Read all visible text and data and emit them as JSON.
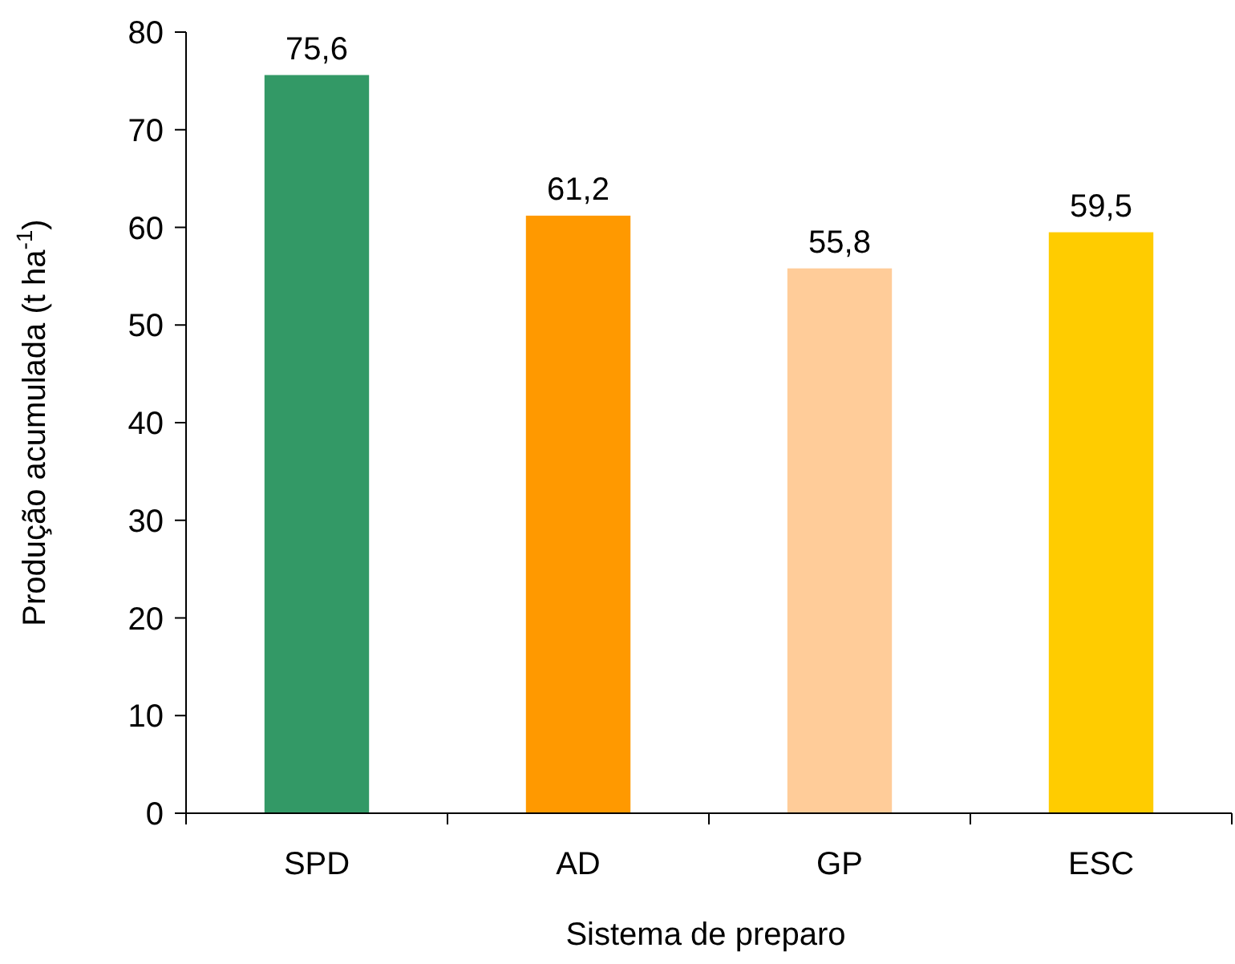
{
  "chart_data": {
    "type": "bar",
    "xlabel": "Sistema de preparo",
    "ylabel": "Produção acumulada (t ha$^{-1}$)",
    "categories": [
      "SPD",
      "AD",
      "GP",
      "ESC"
    ],
    "values": [
      75.6,
      61.2,
      55.8,
      59.5
    ],
    "colors": [
      "#339966",
      "#ff9900",
      "#ffcc99",
      "#ffcc00"
    ],
    "value_labels": [
      "75,6",
      "61,2",
      "55,8",
      "59,5"
    ],
    "ylim": [
      0,
      80
    ],
    "yticks": [
      0,
      10,
      20,
      30,
      40,
      50,
      60,
      70,
      80
    ]
  }
}
